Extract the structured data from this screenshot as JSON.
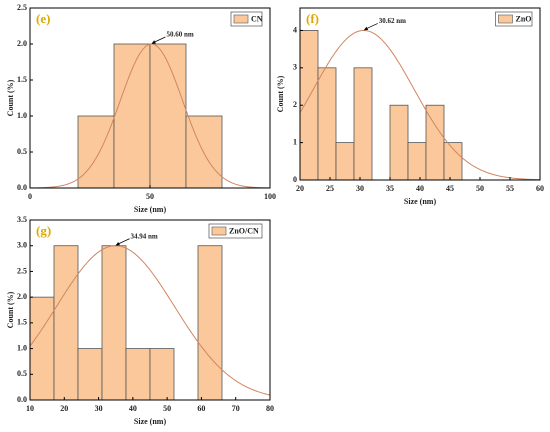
{
  "chart_data": [
    {
      "type": "histogram",
      "panel_label": "(e)",
      "xlabel": "Size (nm)",
      "ylabel": "Count (%)",
      "bins": [
        20,
        35,
        50,
        65,
        80
      ],
      "counts": [
        1,
        2,
        2,
        1
      ],
      "legend": "CN",
      "annotation": "50.60 nm",
      "fit": {
        "mean": 50.6,
        "sigma": 13,
        "amplitude": 2.0
      },
      "bar_color": "#fbc89b",
      "curve_color": "#d08662",
      "xlim": [
        0,
        100
      ],
      "xticks": [
        0,
        50,
        100
      ],
      "ylim": [
        0,
        2.5
      ],
      "yticks": [
        {
          "value": 0,
          "label": "0.0"
        },
        0.5,
        {
          "value": 1,
          "label": "1.0"
        },
        1.5,
        {
          "value": 2,
          "label": "2.0"
        },
        2.5
      ]
    },
    {
      "type": "histogram",
      "panel_label": "(f)",
      "xlabel": "Size (nm)",
      "ylabel": "Count (%)",
      "bins": [
        20,
        23,
        26,
        29,
        32,
        35,
        38,
        41,
        44,
        47
      ],
      "counts": [
        4,
        3,
        1,
        3,
        0,
        2,
        1,
        2,
        1
      ],
      "legend": "ZnO",
      "annotation": "30.62 nm",
      "fit": {
        "mean": 30.62,
        "sigma": 8.4,
        "amplitude": 4.0
      },
      "bar_color": "#fbc89b",
      "curve_color": "#d08662",
      "xlim": [
        20,
        60
      ],
      "xticks": [
        20,
        25,
        30,
        35,
        40,
        45,
        50,
        55,
        60
      ],
      "ylim": [
        0,
        4.6
      ],
      "yticks": [
        0,
        1,
        2,
        3,
        4
      ]
    },
    {
      "type": "histogram",
      "panel_label": "(g)",
      "xlabel": "Size (nm)",
      "ylabel": "Count (%)",
      "bins": [
        10,
        17,
        24,
        31,
        38,
        45,
        52,
        59,
        66
      ],
      "counts": [
        2,
        3,
        1,
        3,
        1,
        1,
        0,
        3
      ],
      "legend": "ZnO/CN",
      "annotation": "34.94 nm",
      "fit": {
        "mean": 34.94,
        "sigma": 17.2,
        "amplitude": 3.0
      },
      "bar_color": "#fbc89b",
      "curve_color": "#d08662",
      "xlim": [
        10,
        80
      ],
      "xticks": [
        10,
        20,
        30,
        40,
        50,
        60,
        70,
        80
      ],
      "ylim": [
        0,
        3.5
      ],
      "yticks": [
        {
          "value": 0,
          "label": "0.0"
        },
        0.5,
        {
          "value": 1,
          "label": "1.0"
        },
        1.5,
        {
          "value": 2,
          "label": "2.0"
        },
        2.5,
        {
          "value": 3,
          "label": "3.0"
        },
        3.5
      ]
    }
  ]
}
